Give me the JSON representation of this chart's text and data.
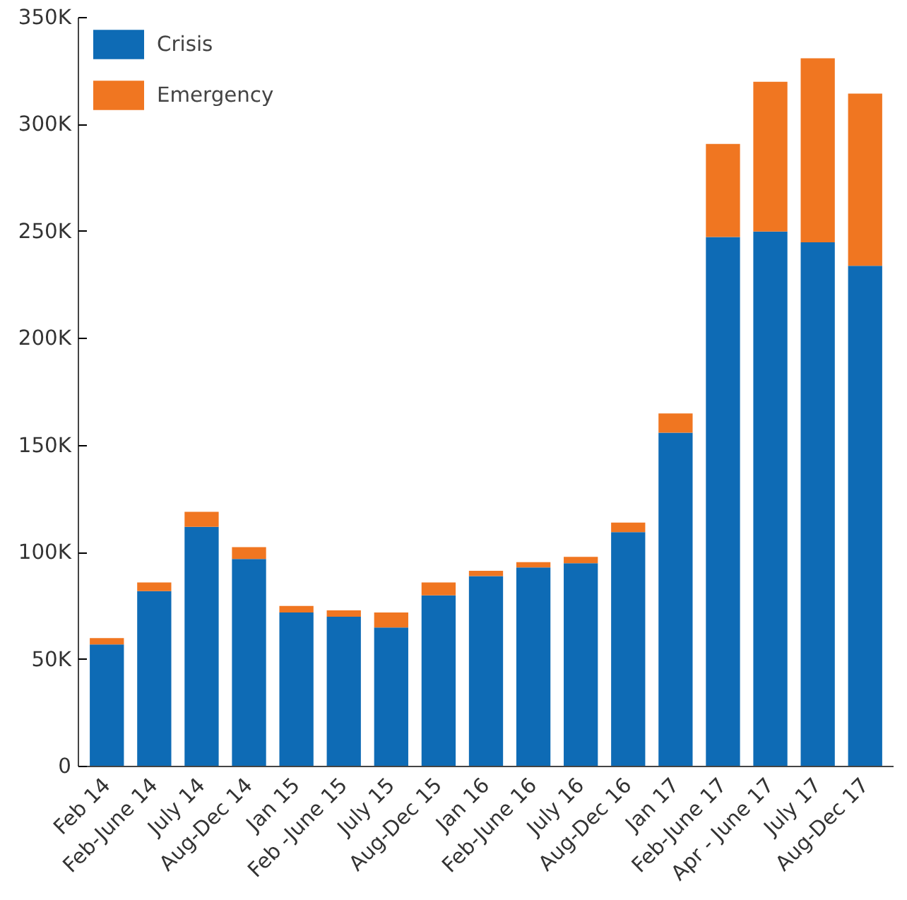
{
  "chart_data": {
    "type": "bar",
    "stacked": true,
    "categories": [
      "Feb 14",
      "Feb-June 14",
      "July 14",
      "Aug-Dec 14",
      "Jan 15",
      "Feb -June 15",
      "July 15",
      "Aug-Dec 15",
      "Jan 16",
      "Feb-June 16",
      "July 16",
      "Aug-Dec 16",
      "Jan 17",
      "Feb-June 17",
      "Apr - June 17",
      "July 17",
      "Aug-Dec 17"
    ],
    "series": [
      {
        "name": "Crisis",
        "color": "#0e6bb5",
        "values": [
          57000,
          82000,
          112000,
          97000,
          72000,
          70000,
          65000,
          80000,
          89000,
          93000,
          95000,
          109500,
          156000,
          247500,
          250000,
          245000,
          234000
        ]
      },
      {
        "name": "Emergency",
        "color": "#f07621",
        "values": [
          3000,
          4000,
          7000,
          5500,
          3000,
          3000,
          7000,
          6000,
          2500,
          2500,
          3000,
          4500,
          9000,
          43500,
          70000,
          86000,
          80500
        ]
      }
    ],
    "ylim": [
      0,
      350000
    ],
    "yticks": [
      {
        "value": 0,
        "label": "0"
      },
      {
        "value": 50000,
        "label": "50K"
      },
      {
        "value": 100000,
        "label": "100K"
      },
      {
        "value": 150000,
        "label": "150K"
      },
      {
        "value": 200000,
        "label": "200K"
      },
      {
        "value": 250000,
        "label": "250K"
      },
      {
        "value": 300000,
        "label": "300K"
      },
      {
        "value": 350000,
        "label": "350K"
      }
    ],
    "grid": false,
    "legend": "top left"
  }
}
